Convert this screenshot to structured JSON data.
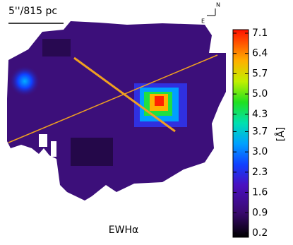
{
  "chart_data": {
    "type": "colormap",
    "title": "EWHα",
    "scale_label": "5''/815 pc",
    "compass": {
      "north": "N",
      "east": "E"
    },
    "colorbar": {
      "label": "[Å]",
      "lim": [
        0.2,
        7.1
      ],
      "ticks": [
        0.2,
        0.9,
        1.6,
        2.3,
        {
          "value": 3.0,
          "label": "3.0"
        },
        3.7,
        4.3,
        {
          "value": 5.0,
          "label": "5.0"
        },
        5.7,
        6.4,
        7.1
      ]
    }
  }
}
